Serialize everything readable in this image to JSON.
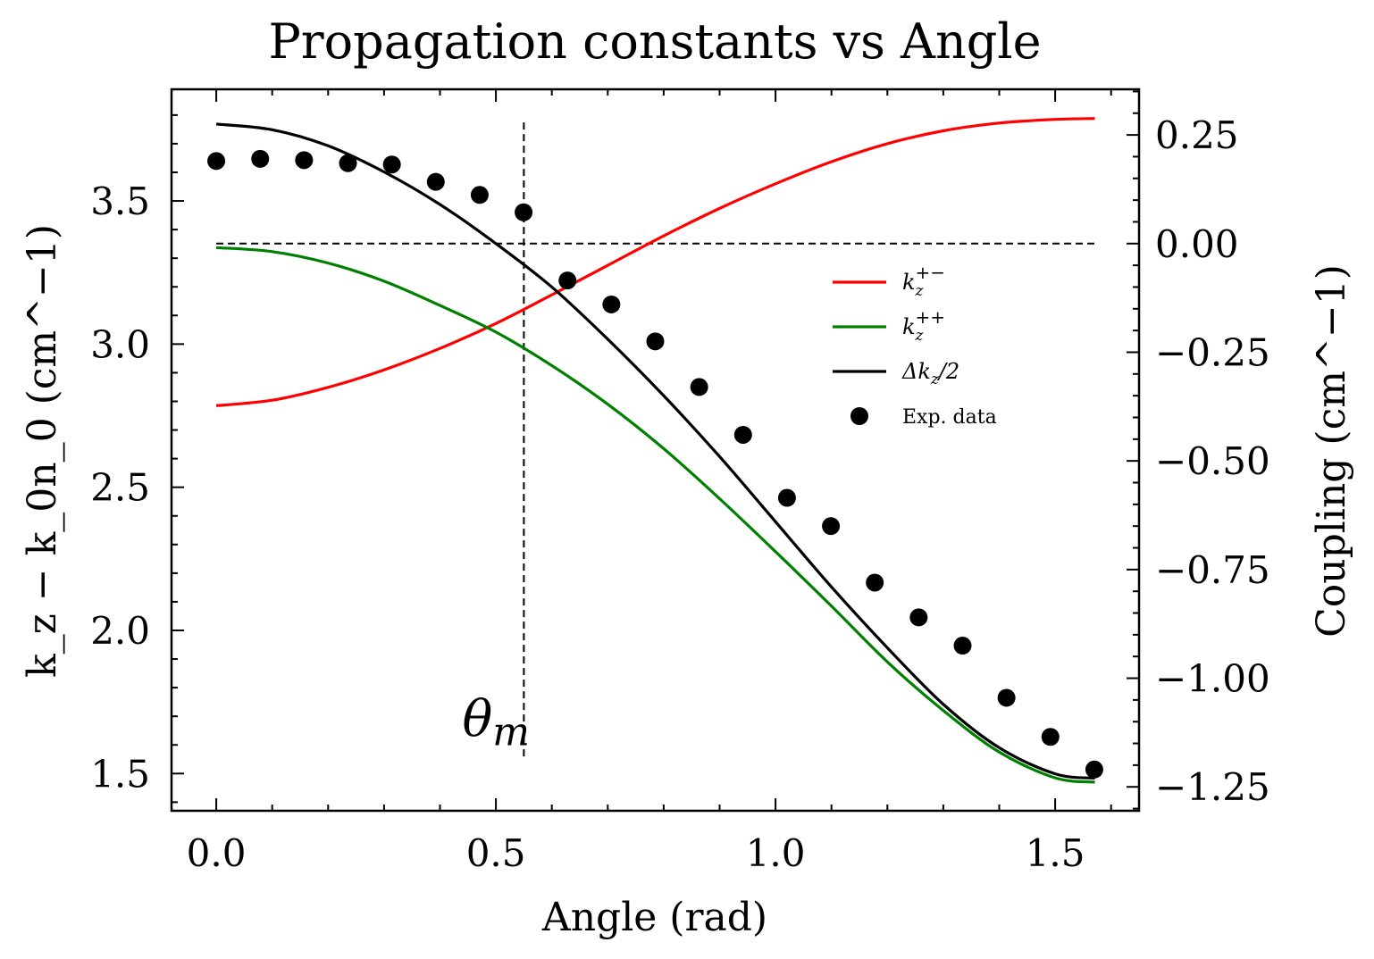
{
  "chart_data": {
    "type": "line",
    "title": "Propagation constants vs Angle",
    "xlabel": "Angle (rad)",
    "ylabel_left": "k_z − k_0n_0 (cm^−1)",
    "ylabel_right": "Coupling (cm^−1)",
    "xlim": [
      -0.08,
      1.65
    ],
    "ylim_left": [
      1.37,
      3.89
    ],
    "ylim_right": [
      -1.305,
      0.355
    ],
    "x_ticks": [
      0.0,
      0.5,
      1.0,
      1.5
    ],
    "x_tick_labels": [
      "0.0",
      "0.5",
      "1.0",
      "1.5"
    ],
    "y_left_ticks": [
      1.5,
      2.0,
      2.5,
      3.0,
      3.5
    ],
    "y_left_tick_labels": [
      "1.5",
      "2.0",
      "2.5",
      "3.0",
      "3.5"
    ],
    "y_right_ticks": [
      0.25,
      0.0,
      -0.25,
      -0.5,
      -0.75,
      -1.0,
      -1.25
    ],
    "y_right_tick_labels": [
      "0.25",
      "0.00",
      "−0.25",
      "−0.50",
      "−0.75",
      "−1.00",
      "−1.25"
    ],
    "grid": false,
    "legend_position": "center-right",
    "series": [
      {
        "name": "k_z^{+−}",
        "label_base": "k",
        "label_sub": "z",
        "label_sup": "+−",
        "axis": "left",
        "color": "#ff0000",
        "kind": "line",
        "x": [
          0.0,
          0.1,
          0.2,
          0.3,
          0.4,
          0.5,
          0.6,
          0.7,
          0.8,
          0.9,
          1.0,
          1.1,
          1.2,
          1.3,
          1.4,
          1.5,
          1.571
        ],
        "y": [
          2.785,
          2.804,
          2.849,
          2.91,
          2.985,
          3.072,
          3.172,
          3.275,
          3.378,
          3.474,
          3.56,
          3.637,
          3.7,
          3.745,
          3.772,
          3.785,
          3.788
        ]
      },
      {
        "name": "k_z^{++}",
        "label_base": "k",
        "label_sub": "z",
        "label_sup": "++",
        "axis": "left",
        "color": "#008000",
        "kind": "line",
        "x": [
          0.0,
          0.1,
          0.2,
          0.3,
          0.4,
          0.5,
          0.6,
          0.7,
          0.8,
          0.9,
          1.0,
          1.1,
          1.2,
          1.3,
          1.4,
          1.5,
          1.571
        ],
        "y": [
          3.337,
          3.323,
          3.283,
          3.22,
          3.135,
          3.042,
          2.925,
          2.79,
          2.635,
          2.46,
          2.275,
          2.085,
          1.89,
          1.72,
          1.575,
          1.485,
          1.47
        ]
      },
      {
        "name": "Δk_z/2",
        "label_base": "Δk",
        "label_sub": "z",
        "label_tail": "/2",
        "axis": "right",
        "color": "#000000",
        "kind": "line",
        "x": [
          0.0,
          0.1,
          0.2,
          0.3,
          0.4,
          0.5,
          0.6,
          0.7,
          0.8,
          0.9,
          1.0,
          1.1,
          1.2,
          1.3,
          1.4,
          1.5,
          1.571
        ],
        "y": [
          0.275,
          0.262,
          0.225,
          0.165,
          0.09,
          0.0,
          -0.1,
          -0.22,
          -0.35,
          -0.49,
          -0.64,
          -0.79,
          -0.93,
          -1.06,
          -1.16,
          -1.22,
          -1.23
        ]
      },
      {
        "name": "Exp. data",
        "axis": "right",
        "color": "#000000",
        "kind": "scatter",
        "x": [
          0.0,
          0.0785,
          0.157,
          0.2355,
          0.314,
          0.3925,
          0.471,
          0.5495,
          0.628,
          0.7065,
          0.785,
          0.8635,
          0.942,
          1.0205,
          1.099,
          1.1775,
          1.256,
          1.3345,
          1.413,
          1.4915,
          1.57
        ],
        "y": [
          0.19,
          0.195,
          0.192,
          0.185,
          0.182,
          0.142,
          0.112,
          0.072,
          -0.085,
          -0.14,
          -0.225,
          -0.33,
          -0.44,
          -0.585,
          -0.65,
          -0.78,
          -0.86,
          -0.925,
          -1.045,
          -1.135,
          -1.21
        ]
      }
    ],
    "reference_lines": [
      {
        "orientation": "horizontal",
        "axis": "right",
        "value": 0.0,
        "x_from": 0.0,
        "x_to": 1.571,
        "style": "dashed"
      },
      {
        "orientation": "vertical",
        "value": 0.55,
        "y_from": 1.56,
        "y_to": 3.78,
        "style": "dashed"
      }
    ],
    "annotations": [
      {
        "text": "θm",
        "base": "θ",
        "sub": "m",
        "x": 0.44,
        "y": 1.63
      }
    ]
  }
}
